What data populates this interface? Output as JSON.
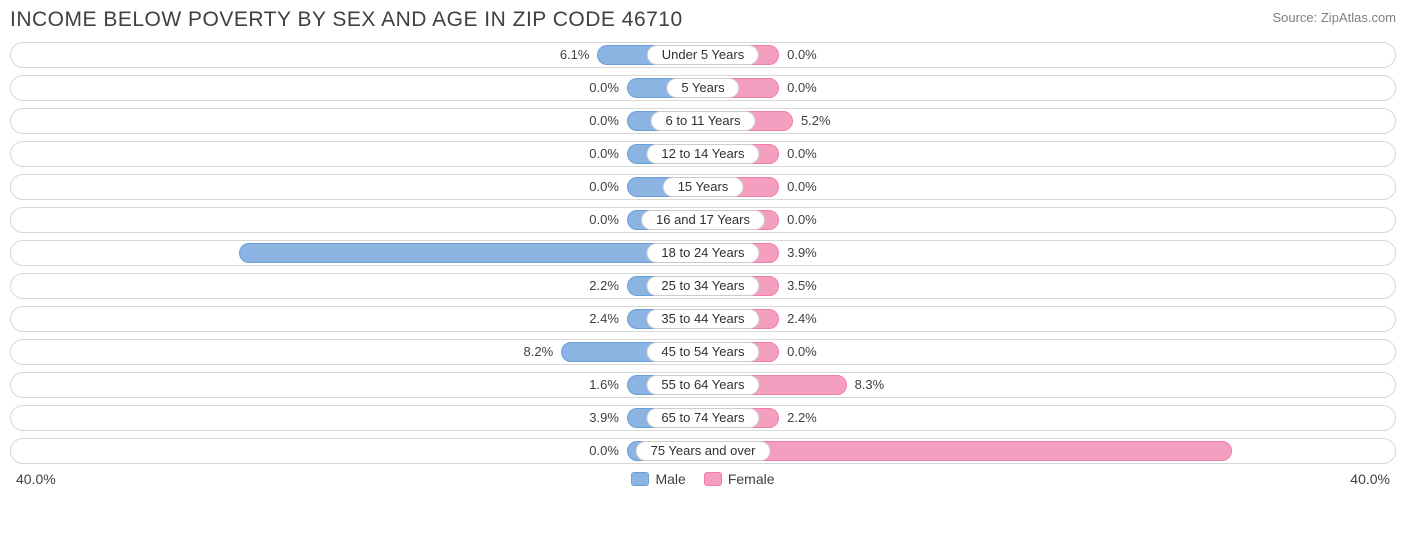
{
  "title": "INCOME BELOW POVERTY BY SEX AND AGE IN ZIP CODE 46710",
  "source": "Source: ZipAtlas.com",
  "axis_max": 40.0,
  "axis_label_left": "40.0%",
  "axis_label_right": "40.0%",
  "min_bar_pct": 5.5,
  "inside_threshold": 15.0,
  "colors": {
    "male_fill": "#8bb4e2",
    "male_border": "#6a9fd8",
    "female_fill": "#f49fc0",
    "female_border": "#ef7daa",
    "track_border": "#d8d8d8",
    "text": "#404040",
    "source_text": "#808080",
    "label_border": "#cccccc",
    "background": "#ffffff"
  },
  "legend": {
    "male": "Male",
    "female": "Female"
  },
  "rows": [
    {
      "label": "Under 5 Years",
      "male": 6.1,
      "female": 0.0
    },
    {
      "label": "5 Years",
      "male": 0.0,
      "female": 0.0
    },
    {
      "label": "6 to 11 Years",
      "male": 0.0,
      "female": 5.2
    },
    {
      "label": "12 to 14 Years",
      "male": 0.0,
      "female": 0.0
    },
    {
      "label": "15 Years",
      "male": 0.0,
      "female": 0.0
    },
    {
      "label": "16 and 17 Years",
      "male": 0.0,
      "female": 0.0
    },
    {
      "label": "18 to 24 Years",
      "male": 26.8,
      "female": 3.9
    },
    {
      "label": "25 to 34 Years",
      "male": 2.2,
      "female": 3.5
    },
    {
      "label": "35 to 44 Years",
      "male": 2.4,
      "female": 2.4
    },
    {
      "label": "45 to 54 Years",
      "male": 8.2,
      "female": 0.0
    },
    {
      "label": "55 to 64 Years",
      "male": 1.6,
      "female": 8.3
    },
    {
      "label": "65 to 74 Years",
      "male": 3.9,
      "female": 2.2
    },
    {
      "label": "75 Years and over",
      "male": 0.0,
      "female": 30.6
    }
  ]
}
